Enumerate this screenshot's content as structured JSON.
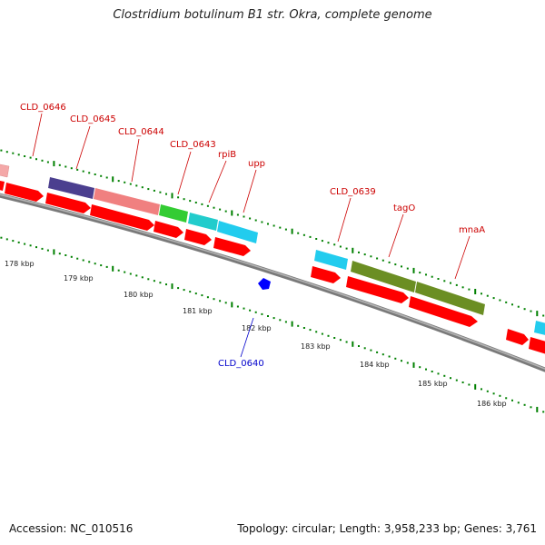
{
  "title": "Clostridium botulinum B1 str. Okra, complete genome",
  "footer": {
    "accession": "Accession: NC_010516",
    "summary": "Topology: circular; Length: 3,958,233 bp; Genes: 3,761"
  },
  "colors": {
    "backbone": "#8c8c8c",
    "cds": "#ff0000",
    "tick": "#008000",
    "label_forward": "#cc0000",
    "label_reverse": "#0000cc"
  },
  "scale_labels": [
    "178 kbp",
    "179 kbp",
    "180 kbp",
    "181 kbp",
    "182 kbp",
    "183 kbp",
    "184 kbp",
    "185 kbp",
    "186 kbp"
  ],
  "feature_labels": {
    "CLD_0646": "CLD_0646",
    "CLD_0645": "CLD_0645",
    "CLD_0644": "CLD_0644",
    "CLD_0643": "CLD_0643",
    "rpiB": "rpiB",
    "upp": "upp",
    "CLD_0639": "CLD_0639",
    "tagO": "tagO",
    "mnaA": "mnaA",
    "CLD_0640": "CLD_0640"
  }
}
